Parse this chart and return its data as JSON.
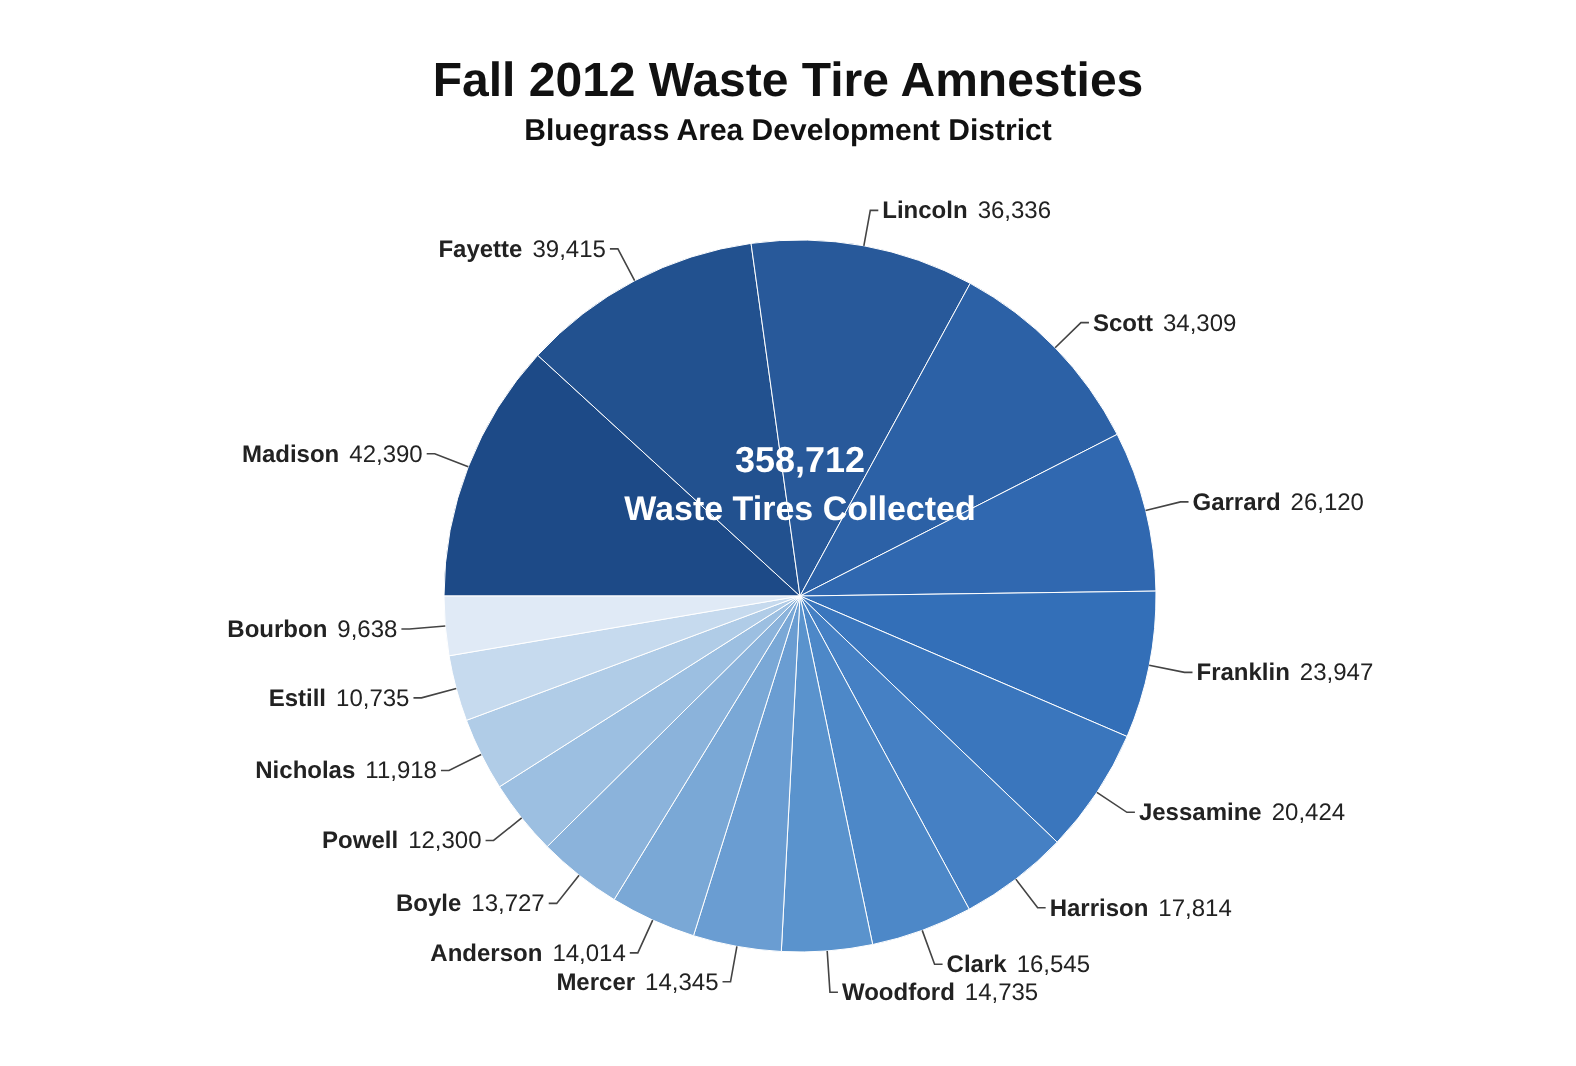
{
  "chart_data": {
    "type": "pie",
    "title": "Fall 2012 Waste Tire Amnesties",
    "subtitle": "Bluegrass Area Development District",
    "annotations": [
      "358,712",
      "Waste Tires Collected"
    ],
    "categories": [
      "Madison",
      "Fayette",
      "Lincoln",
      "Scott",
      "Garrard",
      "Franklin",
      "Jessamine",
      "Harrison",
      "Clark",
      "Woodford",
      "Mercer",
      "Anderson",
      "Boyle",
      "Powell",
      "Nicholas",
      "Estill",
      "Bourbon"
    ],
    "values": [
      42390,
      39415,
      36336,
      34309,
      26120,
      23947,
      20424,
      17814,
      16545,
      14735,
      14345,
      14014,
      13727,
      12300,
      11918,
      10735,
      9638
    ],
    "colors": [
      "#1d4a87",
      "#22518f",
      "#28599a",
      "#2c61a6",
      "#3068b0",
      "#336fb8",
      "#3a76bd",
      "#4580c4",
      "#4d88c8",
      "#5a93cd",
      "#6a9dd2",
      "#7aa8d6",
      "#8bb3db",
      "#9cbfe1",
      "#b0cce7",
      "#c6daee",
      "#e0eaf6"
    ],
    "value_labels": [
      "42,390",
      "39,415",
      "36,336",
      "34,309",
      "26,120",
      "23,947",
      "20,424",
      "17,814",
      "16,545",
      "14,735",
      "14,345",
      "14,014",
      "13,727",
      "12,300",
      "11,918",
      "10,735",
      "9,638"
    ]
  }
}
